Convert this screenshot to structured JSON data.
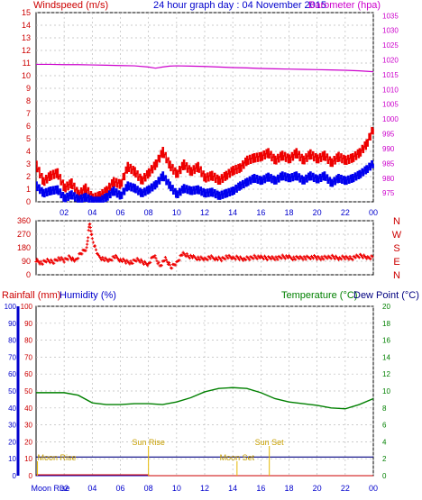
{
  "title": "24 hour graph day : 04 November 2015",
  "colors": {
    "wind_avg": "#0000ee",
    "wind_gust": "#ee0000",
    "barometer": "#cc00cc",
    "wind_dir": "#ee0000",
    "temperature": "#008000",
    "dew_point": "#000080",
    "humidity": "#0000cc",
    "rainfall": "#cc0000",
    "astro": "#e6b800",
    "grid": "#bbbbbb"
  },
  "chart_data": [
    {
      "type": "line",
      "panel": "wind_barometer",
      "title": "24 hour graph day : 04 November 2015",
      "ylabel_left": "Windspeed (m/s)",
      "ylabel_right": "Barometer (hpa)",
      "x_ticks": [
        "02",
        "04",
        "06",
        "08",
        "10",
        "12",
        "14",
        "16",
        "18",
        "20",
        "22",
        "00"
      ],
      "x_range_hours": [
        0,
        24
      ],
      "y_left_ticks": [
        0,
        1,
        2,
        3,
        4,
        5,
        6,
        7,
        8,
        9,
        10,
        11,
        12,
        13,
        14,
        15
      ],
      "ylim_left": [
        0,
        15
      ],
      "y_right_ticks": [
        975,
        980,
        985,
        990,
        995,
        1000,
        1005,
        1010,
        1015,
        1020,
        1025,
        1030,
        1035
      ],
      "ylim_right": [
        972,
        1036
      ],
      "grid": true,
      "series": [
        {
          "name": "Windspeed",
          "key": "wind_avg",
          "x": [
            0,
            0.5,
            1,
            1.5,
            2,
            2.5,
            3,
            3.5,
            4,
            4.5,
            5,
            5.5,
            6,
            6.5,
            7,
            7.5,
            8,
            8.5,
            9,
            9.5,
            10,
            10.5,
            11,
            11.5,
            12,
            12.5,
            13,
            13.5,
            14,
            14.5,
            15,
            15.5,
            16,
            16.5,
            17,
            17.5,
            18,
            18.5,
            19,
            19.5,
            20,
            20.5,
            21,
            21.5,
            22,
            22.5,
            23,
            23.5,
            24
          ],
          "values": [
            1.2,
            0.6,
            0.8,
            0.9,
            0.2,
            0.5,
            0.1,
            0.3,
            0.0,
            0.0,
            0.3,
            0.8,
            0.4,
            1.2,
            1.0,
            0.6,
            0.9,
            1.3,
            2.0,
            1.2,
            0.5,
            1.0,
            0.8,
            0.9,
            0.6,
            0.7,
            0.4,
            0.6,
            0.8,
            1.2,
            1.5,
            1.8,
            1.6,
            1.9,
            1.6,
            2.0,
            1.8,
            2.0,
            1.6,
            2.0,
            1.7,
            2.0,
            1.4,
            1.8,
            1.6,
            1.8,
            2.1,
            2.5,
            3.0
          ]
        },
        {
          "name": "Gust",
          "key": "wind_gust",
          "x": [
            0,
            0.5,
            1,
            1.5,
            2,
            2.5,
            3,
            3.5,
            4,
            4.5,
            5,
            5.5,
            6,
            6.5,
            7,
            7.5,
            8,
            8.5,
            9,
            9.5,
            10,
            10.5,
            11,
            11.5,
            12,
            12.5,
            13,
            13.5,
            14,
            14.5,
            15,
            15.5,
            16,
            16.5,
            17,
            17.5,
            18,
            18.5,
            19,
            19.5,
            20,
            20.5,
            21,
            21.5,
            22,
            22.5,
            23,
            23.5,
            24
          ],
          "values": [
            2.8,
            1.5,
            2.0,
            2.2,
            1.0,
            1.4,
            0.5,
            1.0,
            0.2,
            0.4,
            0.8,
            1.5,
            1.3,
            2.7,
            2.3,
            1.6,
            2.2,
            2.9,
            3.9,
            2.8,
            2.1,
            2.9,
            2.3,
            2.7,
            1.8,
            2.0,
            1.6,
            2.0,
            2.4,
            2.6,
            3.2,
            3.4,
            3.5,
            3.8,
            3.2,
            3.6,
            3.3,
            3.8,
            3.2,
            3.7,
            3.3,
            3.6,
            3.0,
            3.5,
            3.2,
            3.4,
            3.8,
            4.5,
            5.8
          ]
        },
        {
          "name": "Barometer",
          "key": "barometer",
          "x": [
            0,
            1,
            2,
            3,
            4,
            5,
            6,
            7,
            8,
            8.5,
            9,
            9.5,
            10,
            11,
            12,
            13,
            14,
            15,
            16,
            17,
            18,
            19,
            20,
            21,
            22,
            23,
            24
          ],
          "values": [
            1018.5,
            1018.5,
            1018.4,
            1018.4,
            1018.3,
            1018.2,
            1018.1,
            1018.0,
            1017.6,
            1017.2,
            1017.6,
            1017.9,
            1018.0,
            1017.9,
            1017.8,
            1017.6,
            1017.4,
            1017.3,
            1017.1,
            1017.0,
            1016.9,
            1016.8,
            1016.7,
            1016.6,
            1016.5,
            1016.3,
            1016.0
          ]
        }
      ]
    },
    {
      "type": "scatter",
      "panel": "wind_direction",
      "y_ticks": [
        0,
        90,
        180,
        270,
        360
      ],
      "ylim": [
        0,
        360
      ],
      "compass_labels": [
        "N",
        "W",
        "S",
        "E",
        "N"
      ],
      "series": [
        {
          "name": "Wind direction",
          "key": "wind_dir",
          "x": [
            0,
            0.4,
            0.8,
            1.2,
            1.6,
            2,
            2.4,
            2.8,
            3.2,
            3.6,
            3.8,
            4,
            4.4,
            4.8,
            5.2,
            5.6,
            6,
            6.4,
            6.8,
            7.2,
            7.6,
            8,
            8.4,
            8.8,
            9.2,
            9.6,
            10,
            10.4,
            10.8,
            11.2,
            11.6,
            12,
            12.4,
            12.8,
            13.2,
            13.6,
            14,
            14.4,
            14.8,
            15.2,
            15.6,
            16,
            16.4,
            16.8,
            17.2,
            17.6,
            18,
            18.4,
            18.8,
            19.2,
            19.6,
            20,
            20.4,
            20.8,
            21.2,
            21.6,
            22,
            22.4,
            22.8,
            23.2,
            23.6,
            24
          ],
          "values": [
            100,
            75,
            95,
            85,
            110,
            95,
            120,
            90,
            145,
            175,
            345,
            240,
            125,
            105,
            95,
            120,
            100,
            90,
            80,
            100,
            85,
            70,
            130,
            60,
            105,
            50,
            80,
            140,
            125,
            115,
            110,
            105,
            115,
            110,
            105,
            120,
            110,
            115,
            105,
            110,
            120,
            115,
            110,
            115,
            110,
            120,
            115,
            110,
            115,
            110,
            120,
            115,
            110,
            115,
            120,
            110,
            115,
            110,
            120,
            125,
            115,
            120
          ]
        }
      ]
    },
    {
      "type": "line",
      "panel": "rain_humidity_temp",
      "ylabel_left_1": "Rainfall (mm)",
      "ylabel_left_2": "Humidity (%)",
      "ylabel_right_1": "Temperature (°C)",
      "ylabel_right_2": "Dew Point (°C)",
      "y_left_ticks": [
        0,
        10,
        20,
        30,
        40,
        50,
        60,
        70,
        80,
        90,
        100
      ],
      "ylim_left": [
        0,
        100
      ],
      "y_right_ticks": [
        0,
        2,
        4,
        6,
        8,
        10,
        12,
        14,
        16,
        18,
        20
      ],
      "ylim_right": [
        0,
        20
      ],
      "grid": true,
      "series": [
        {
          "name": "Temperature",
          "key": "temperature",
          "x": [
            0,
            1,
            2,
            3,
            4,
            5,
            6,
            7,
            8,
            9,
            10,
            11,
            12,
            13,
            14,
            15,
            16,
            17,
            18,
            19,
            20,
            21,
            22,
            23,
            24
          ],
          "values": [
            9.8,
            9.8,
            9.8,
            9.5,
            8.6,
            8.4,
            8.4,
            8.5,
            8.5,
            8.4,
            8.7,
            9.2,
            9.9,
            10.3,
            10.4,
            10.3,
            9.8,
            9.1,
            8.7,
            8.5,
            8.3,
            8.0,
            7.9,
            8.4,
            9.1
          ]
        },
        {
          "name": "Dew Point",
          "key": "dew_point",
          "x": [
            0,
            24
          ],
          "values": [
            2.2,
            2.2
          ]
        },
        {
          "name": "Humidity",
          "key": "humidity",
          "x": [
            0,
            24
          ],
          "values": [
            0,
            0
          ]
        },
        {
          "name": "Rainfall",
          "key": "rainfall",
          "x": [
            0,
            8,
            8.01,
            24
          ],
          "values": [
            0.5,
            0.5,
            0,
            0
          ]
        }
      ],
      "annotations": [
        {
          "label": "Moon Rise",
          "hour": 0.1,
          "level": "low",
          "text_pos": "below-left"
        },
        {
          "label": "Sun Rise",
          "hour": 8.0,
          "level": "high"
        },
        {
          "label": "Moon Set",
          "hour": 14.3,
          "level": "low"
        },
        {
          "label": "Sun Set",
          "hour": 16.6,
          "level": "high"
        }
      ],
      "x_ticks": [
        "Moon Rise",
        "02",
        "04",
        "06",
        "08",
        "10",
        "12",
        "14",
        "16",
        "18",
        "20",
        "22",
        "00"
      ]
    }
  ]
}
